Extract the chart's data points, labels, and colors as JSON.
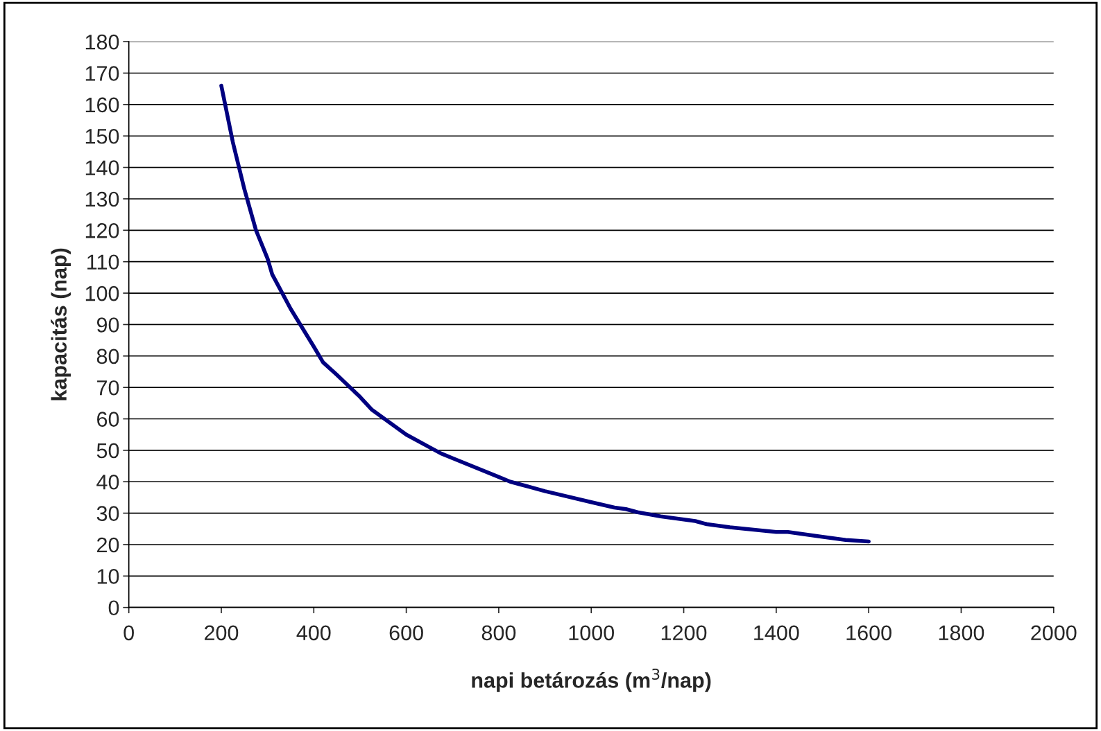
{
  "chart_data": {
    "type": "line",
    "xlabel": "napi betározás (m$^{3}$/nap)",
    "ylabel": "kapacitás (nap)",
    "series": [
      {
        "color": "#000080",
        "x": [
          200,
          225,
          250,
          275,
          300,
          310,
          350,
          400,
          420,
          450,
          500,
          525,
          600,
          650,
          675,
          700,
          800,
          825,
          850,
          900,
          1000,
          1050,
          1075,
          1100,
          1150,
          1200,
          1225,
          1250,
          1300,
          1400,
          1425,
          1500,
          1550,
          1600
        ],
        "values": [
          166,
          148,
          133,
          120,
          111,
          106,
          95,
          83,
          78,
          74,
          67,
          63,
          55,
          51,
          49,
          47.5,
          41.5,
          40,
          39,
          37,
          33.5,
          31.8,
          31.3,
          30.3,
          29,
          28,
          27.5,
          26.5,
          25.5,
          24,
          24,
          22.5,
          21.5,
          21
        ]
      }
    ],
    "xlim": [
      0,
      2000
    ],
    "xticks": [
      0,
      200,
      400,
      600,
      800,
      1000,
      1200,
      1400,
      1600,
      1800,
      2000
    ],
    "ylim": [
      0,
      180
    ],
    "yticks": [
      0,
      10,
      20,
      30,
      40,
      50,
      60,
      70,
      80,
      90,
      100,
      110,
      120,
      130,
      140,
      150,
      160,
      170,
      180
    ],
    "grid": "y",
    "marker": "none",
    "line_style": "solid"
  }
}
